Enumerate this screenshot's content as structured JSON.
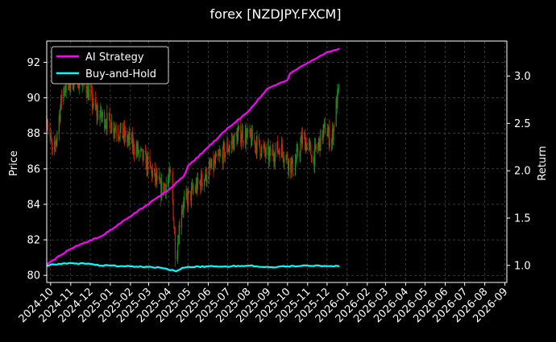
{
  "chart_data": {
    "type": "line",
    "title": "forex [NZDJPY.FXCM]",
    "ylabel": "Price",
    "y2label": "Return",
    "ylim": [
      79.6,
      93.2
    ],
    "y2lim": [
      0.82,
      3.37
    ],
    "xlim": [
      "2024-09-25",
      "2026-09-04"
    ],
    "yticks": [
      80,
      82,
      84,
      86,
      88,
      90,
      92
    ],
    "y2ticks": [
      1.0,
      1.5,
      2.0,
      2.5,
      3.0
    ],
    "y2tick_labels": [
      "1.0",
      "1.5",
      "2.0",
      "2.5",
      "3.0"
    ],
    "xticks": [
      "2024-10-01",
      "2024-11-01",
      "2024-12-01",
      "2025-01-01",
      "2025-02-01",
      "2025-03-01",
      "2025-04-01",
      "2025-05-01",
      "2025-06-01",
      "2025-07-01",
      "2025-08-01",
      "2025-09-01",
      "2025-10-01",
      "2025-11-01",
      "2025-12-01",
      "2026-01-01",
      "2026-02-01",
      "2026-03-01",
      "2026-04-01",
      "2026-05-01",
      "2026-06-01",
      "2026-07-01",
      "2026-08-01",
      "2026-09-01"
    ],
    "xtick_labels": [
      "2024-10",
      "2024-11",
      "2024-12",
      "2025-01",
      "2025-02",
      "2025-03",
      "2025-04",
      "2025-05",
      "2025-06",
      "2025-07",
      "2025-08",
      "2025-09",
      "2025-10",
      "2025-11",
      "2025-12",
      "2026-01",
      "2026-02",
      "2026-03",
      "2026-04",
      "2026-05",
      "2026-06",
      "2026-07",
      "2026-08",
      "2026-09"
    ],
    "grid": true,
    "legend_position": "top-left",
    "candle_colors": {
      "up": "#228b22",
      "down": "#cc2200"
    },
    "price_anchors": [
      {
        "date": "2024-09-25",
        "close": 89.0
      },
      {
        "date": "2024-10-05",
        "close": 86.5
      },
      {
        "date": "2024-10-20",
        "close": 90.5
      },
      {
        "date": "2024-11-10",
        "close": 91.2
      },
      {
        "date": "2024-11-25",
        "close": 90.6
      },
      {
        "date": "2024-12-10",
        "close": 89.2
      },
      {
        "date": "2025-01-10",
        "close": 88.3
      },
      {
        "date": "2025-02-01",
        "close": 87.5
      },
      {
        "date": "2025-03-01",
        "close": 86.2
      },
      {
        "date": "2025-03-20",
        "close": 84.8
      },
      {
        "date": "2025-04-05",
        "close": 85.6
      },
      {
        "date": "2025-04-12",
        "close": 80.8
      },
      {
        "date": "2025-04-20",
        "close": 83.8
      },
      {
        "date": "2025-05-10",
        "close": 84.8
      },
      {
        "date": "2025-06-01",
        "close": 85.8
      },
      {
        "date": "2025-07-01",
        "close": 87.2
      },
      {
        "date": "2025-07-20",
        "close": 88.0
      },
      {
        "date": "2025-08-10",
        "close": 87.6
      },
      {
        "date": "2025-09-01",
        "close": 86.7
      },
      {
        "date": "2025-09-20",
        "close": 87.2
      },
      {
        "date": "2025-10-10",
        "close": 86.0
      },
      {
        "date": "2025-10-25",
        "close": 87.8
      },
      {
        "date": "2025-11-10",
        "close": 86.6
      },
      {
        "date": "2025-11-28",
        "close": 88.3
      },
      {
        "date": "2025-12-08",
        "close": 87.5
      },
      {
        "date": "2025-12-15",
        "close": 89.6
      },
      {
        "date": "2025-12-20",
        "close": 90.5
      }
    ],
    "series": [
      {
        "name": "AI Strategy",
        "color": "#ff00ff",
        "axis": "right",
        "points": [
          [
            "2024-09-25",
            1.01
          ],
          [
            "2024-11-01",
            1.18
          ],
          [
            "2024-12-15",
            1.3
          ],
          [
            "2025-01-01",
            1.37
          ],
          [
            "2025-02-01",
            1.52
          ],
          [
            "2025-03-01",
            1.65
          ],
          [
            "2025-04-01",
            1.8
          ],
          [
            "2025-04-25",
            1.95
          ],
          [
            "2025-05-01",
            2.05
          ],
          [
            "2025-06-01",
            2.25
          ],
          [
            "2025-07-01",
            2.45
          ],
          [
            "2025-08-01",
            2.62
          ],
          [
            "2025-08-20",
            2.78
          ],
          [
            "2025-09-01",
            2.87
          ],
          [
            "2025-10-01",
            2.96
          ],
          [
            "2025-10-05",
            3.03
          ],
          [
            "2025-11-01",
            3.14
          ],
          [
            "2025-12-01",
            3.25
          ],
          [
            "2025-12-20",
            3.29
          ]
        ]
      },
      {
        "name": "Buy-and-Hold",
        "color": "#00ffff",
        "axis": "right",
        "points": [
          [
            "2024-09-25",
            1.0
          ],
          [
            "2024-10-20",
            1.02
          ],
          [
            "2024-12-01",
            1.02
          ],
          [
            "2024-12-15",
            1.0
          ],
          [
            "2025-02-01",
            0.99
          ],
          [
            "2025-03-15",
            0.98
          ],
          [
            "2025-04-12",
            0.94
          ],
          [
            "2025-04-25",
            0.98
          ],
          [
            "2025-06-01",
            0.99
          ],
          [
            "2025-07-01",
            0.99
          ],
          [
            "2025-08-01",
            1.0
          ],
          [
            "2025-09-01",
            0.98
          ],
          [
            "2025-10-01",
            0.99
          ],
          [
            "2025-11-01",
            1.0
          ],
          [
            "2025-12-20",
            0.99
          ]
        ]
      }
    ]
  }
}
